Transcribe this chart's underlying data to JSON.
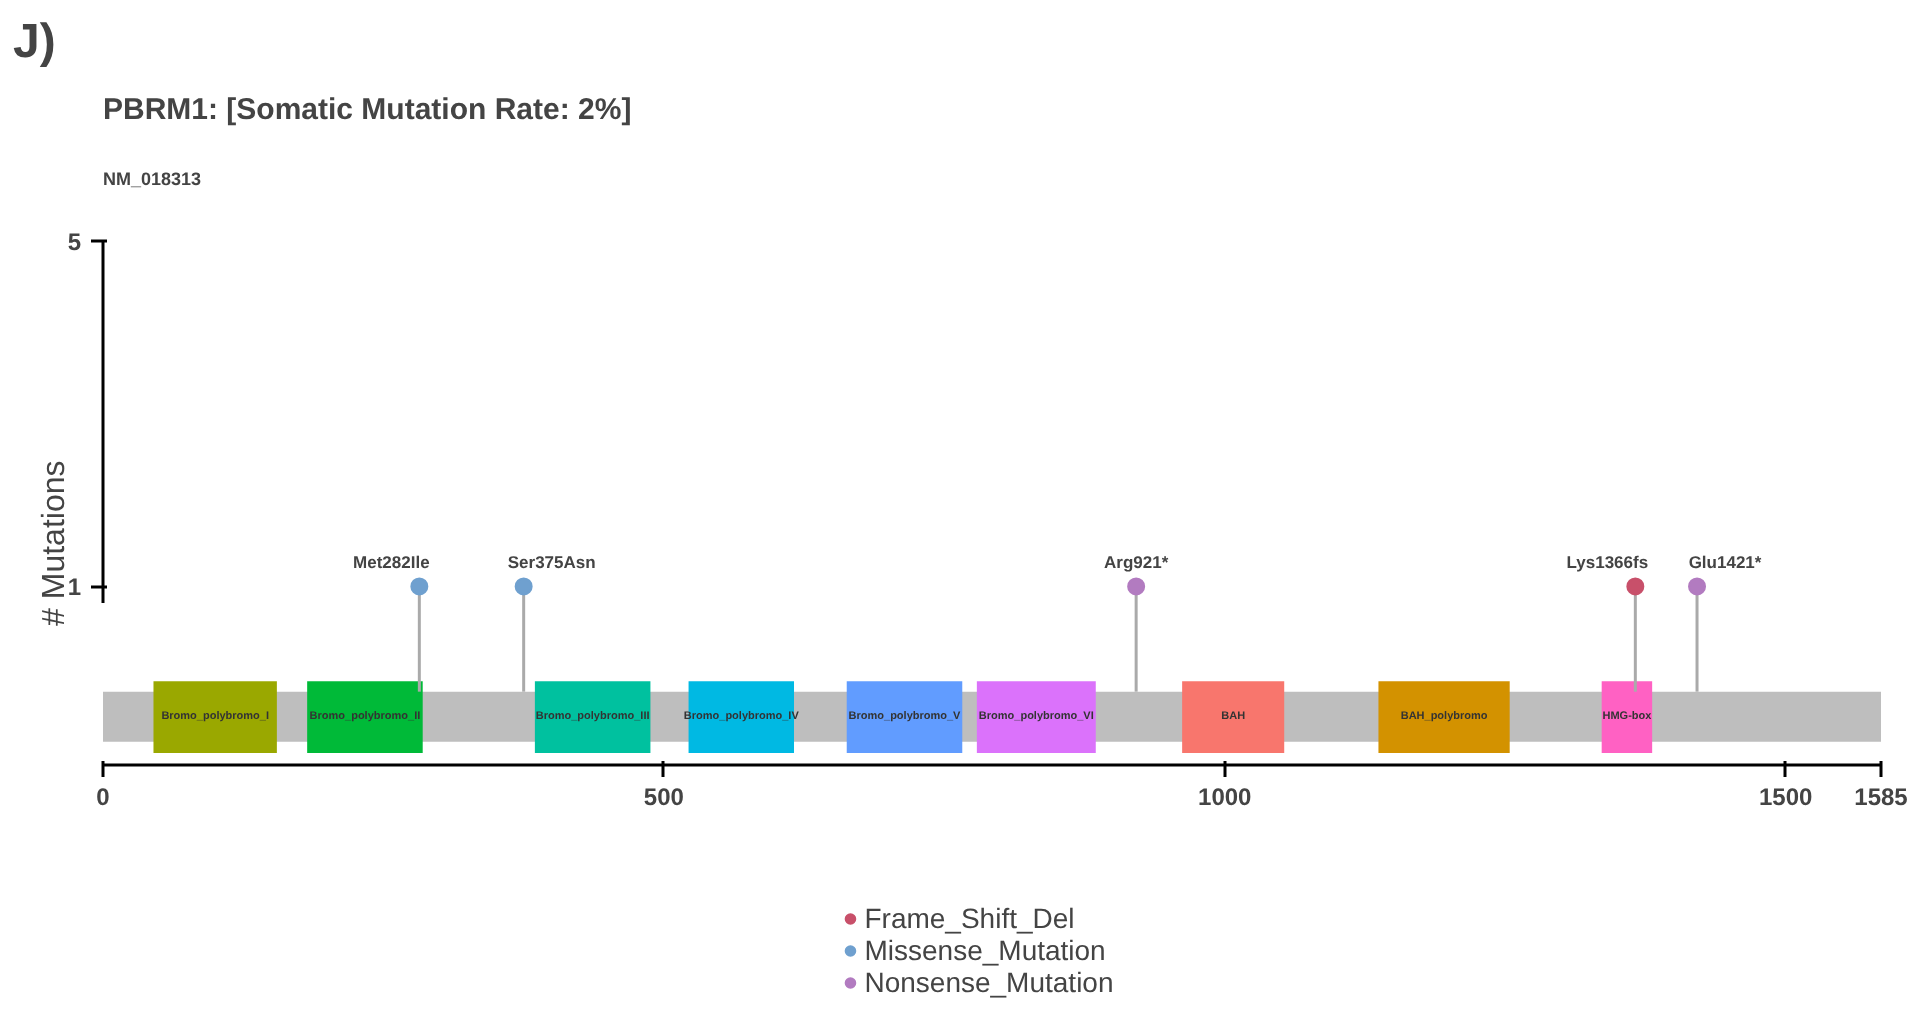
{
  "chart_data": {
    "type": "lollipop",
    "title": "PBRM1: [Somatic Mutation Rate: 2%]",
    "subtitle": "NM_018313",
    "ylabel": "# Mutations",
    "annotations": [
      "J)",
      {
        "text": "Met282Ile",
        "x": 282,
        "y": 1
      },
      {
        "text": "Ser375Asn",
        "x": 375,
        "y": 1
      },
      {
        "text": "Arg921*",
        "x": 921,
        "y": 1
      },
      {
        "text": "Lys1366fs",
        "x": 1366,
        "y": 1
      },
      {
        "text": "Glu1421*",
        "x": 1421,
        "y": 1
      }
    ],
    "series": [
      {
        "name": "Frame_Shift_Del",
        "color": "#c8506a",
        "x": [
          1366
        ],
        "values": [
          1
        ]
      },
      {
        "name": "Missense_Mutation",
        "color": "#6fa0cf",
        "x": [
          282,
          375
        ],
        "values": [
          1,
          1
        ]
      },
      {
        "name": "Nonsense_Mutation",
        "color": "#b27bc0",
        "x": [
          921,
          1421
        ],
        "values": [
          1,
          1
        ]
      }
    ],
    "bands": [
      {
        "axis": "x",
        "from": 0,
        "to": 1585,
        "label": null,
        "color": "#bebebe"
      },
      {
        "axis": "x",
        "from": 45,
        "to": 155,
        "label": "Bromo_polybromo_I",
        "color": "#9aa800"
      },
      {
        "axis": "x",
        "from": 182,
        "to": 285,
        "label": "Bromo_polybromo_II",
        "color": "#00ba38"
      },
      {
        "axis": "x",
        "from": 385,
        "to": 488,
        "label": "Bromo_polybromo_III",
        "color": "#00c19f"
      },
      {
        "axis": "x",
        "from": 522,
        "to": 616,
        "label": "Bromo_polybromo_IV",
        "color": "#00b9e3"
      },
      {
        "axis": "x",
        "from": 663,
        "to": 766,
        "label": "Bromo_polybromo_V",
        "color": "#619cff"
      },
      {
        "axis": "x",
        "from": 779,
        "to": 885,
        "label": "Bromo_polybromo_VI",
        "color": "#db72fb"
      },
      {
        "axis": "x",
        "from": 962,
        "to": 1053,
        "label": "BAH",
        "color": "#f8766d"
      },
      {
        "axis": "x",
        "from": 1137,
        "to": 1254,
        "label": "BAH_polybromo",
        "color": "#d39200"
      },
      {
        "axis": "x",
        "from": 1336,
        "to": 1381,
        "label": "HMG-box",
        "color": "#ff61c3"
      }
    ],
    "xlim": [
      0,
      1585
    ],
    "xticks": [
      0,
      500,
      1000,
      1500,
      1585
    ],
    "ylim": [
      -1.07,
      5.05
    ],
    "yticks": [
      1,
      5
    ],
    "grid": false,
    "legend": "bottom",
    "marker": "circle"
  }
}
